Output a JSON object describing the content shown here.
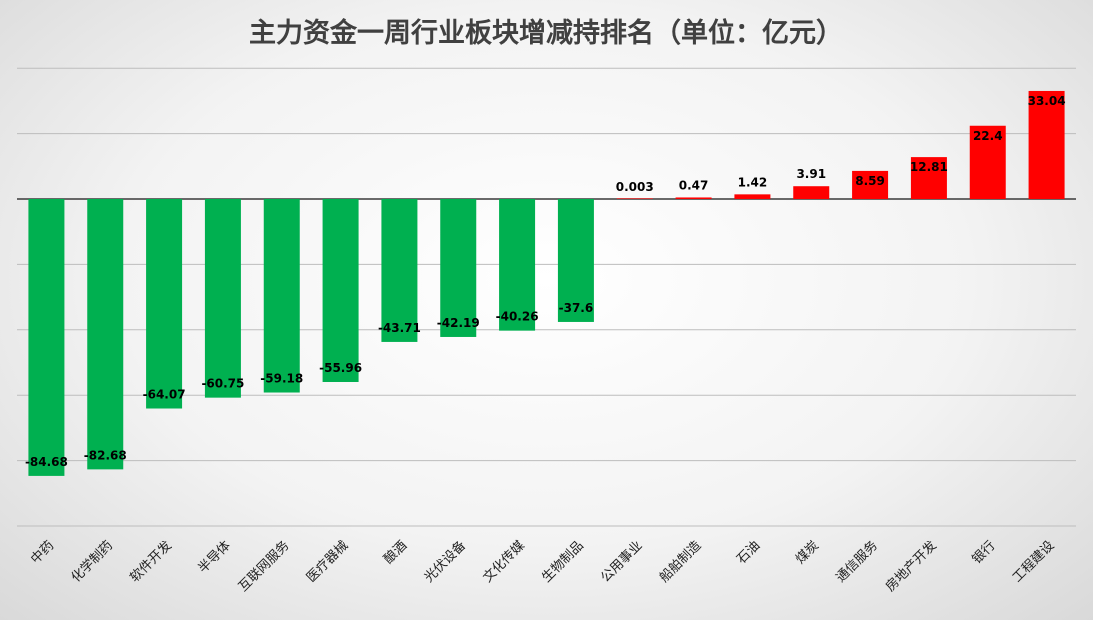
{
  "chart_data": {
    "type": "bar",
    "title": "主力资金一周行业板块增减持排名（单位：亿元）",
    "categories": [
      "中药",
      "化学制药",
      "软件开发",
      "半导体",
      "互联网服务",
      "医疗器械",
      "酿酒",
      "光伏设备",
      "文化传媒",
      "生物制品",
      "公用事业",
      "船舶制造",
      "石油",
      "煤炭",
      "通信服务",
      "房地产开发",
      "银行",
      "工程建设"
    ],
    "values": [
      -84.68,
      -82.68,
      -64.07,
      -60.75,
      -59.18,
      -55.96,
      -43.71,
      -42.19,
      -40.26,
      -37.6,
      0.003,
      0.47,
      1.42,
      3.91,
      8.59,
      12.81,
      22.4,
      33.04
    ],
    "value_labels": [
      "-84.68",
      "-82.68",
      "-64.07",
      "-60.75",
      "-59.18",
      "-55.96",
      "-43.71",
      "-42.19",
      "-40.26",
      "-37.6",
      "0.003",
      "0.47",
      "1.42",
      "3.91",
      "8.59",
      "12.81",
      "22.4",
      "33.04"
    ],
    "ylim": [
      -100,
      40
    ],
    "grid": true,
    "colors": {
      "positive": "#ff0000",
      "negative": "#00b050"
    }
  }
}
